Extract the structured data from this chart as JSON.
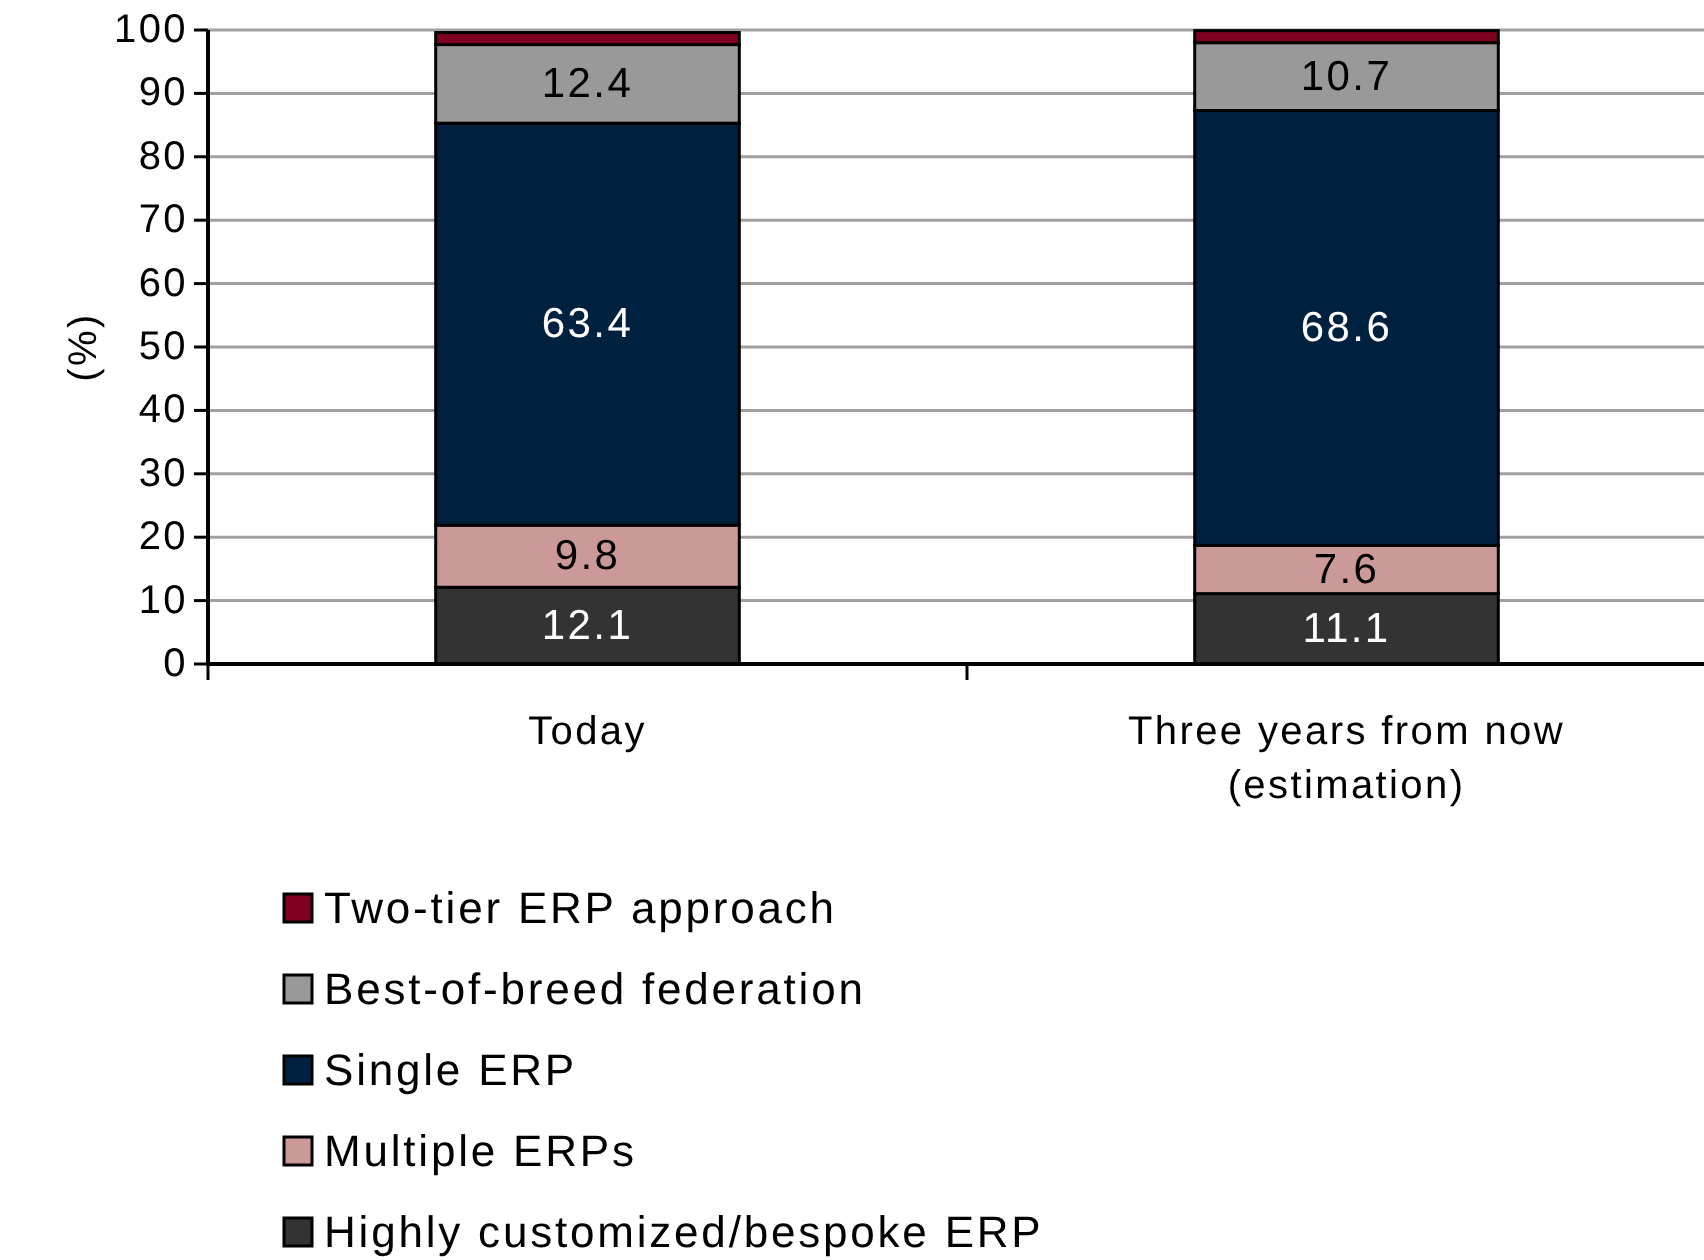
{
  "chart_data": {
    "type": "bar",
    "stacked": true,
    "categories": [
      "Today",
      "Three years from now\n(estimation)"
    ],
    "series": [
      {
        "name": "Highly customized/bespoke ERP",
        "color": "#333333",
        "values": [
          12.1,
          11.1
        ],
        "value_labels": [
          "12.1",
          "11.1"
        ]
      },
      {
        "name": "Multiple ERPs",
        "color": "#cc9999",
        "values": [
          9.8,
          7.6
        ],
        "value_labels": [
          "9.8",
          "7.6"
        ]
      },
      {
        "name": "Single ERP",
        "color": "#002040",
        "values": [
          63.4,
          68.6
        ],
        "value_labels": [
          "63.4",
          "68.6"
        ]
      },
      {
        "name": "Best-of-breed federation",
        "color": "#999999",
        "values": [
          12.4,
          10.7
        ],
        "value_labels": [
          "12.4",
          "10.7"
        ]
      },
      {
        "name": "Two-tier ERP approach",
        "color": "#800020",
        "values": [
          1.9,
          1.9
        ]
      }
    ],
    "ylabel": "(%)",
    "ylim": [
      0,
      100
    ],
    "yticks": [
      0,
      10,
      20,
      30,
      40,
      50,
      60,
      70,
      80,
      90,
      100
    ],
    "grid": "y",
    "legend": "bottom"
  }
}
